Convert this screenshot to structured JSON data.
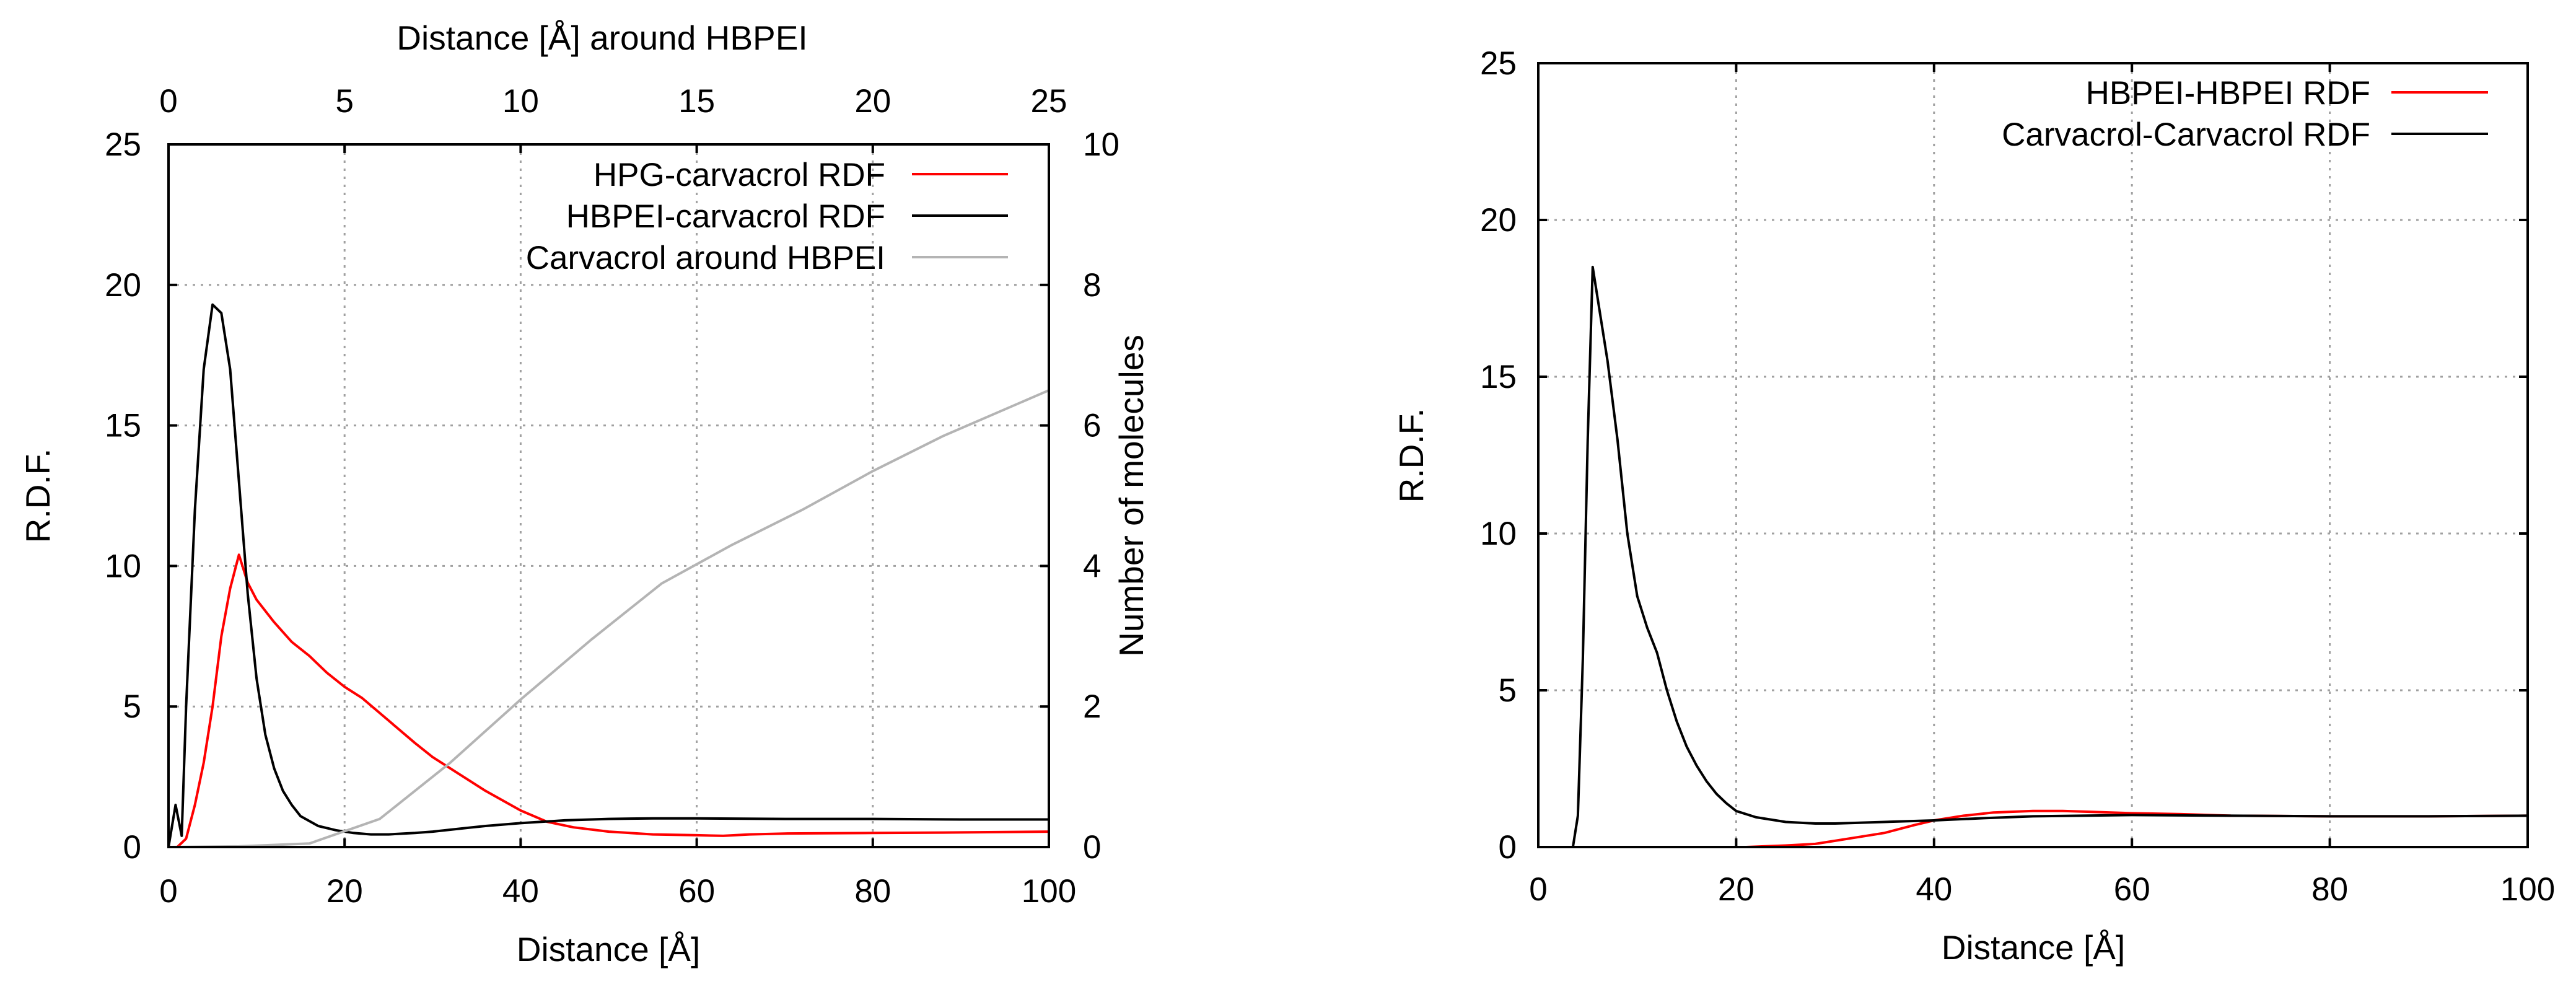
{
  "chart_data": [
    {
      "type": "line",
      "xlabel": "Distance [Å]",
      "ylabel": "R.D.F.",
      "x2label": "Distance [Å] around HBPEI",
      "y2label": "Number of molecules",
      "xlim": [
        0,
        100
      ],
      "ylim": [
        0,
        25
      ],
      "x2lim": [
        0,
        25
      ],
      "y2lim": [
        0,
        10
      ],
      "xticks": [
        "0",
        "20",
        "40",
        "60",
        "80",
        "100"
      ],
      "yticks": [
        "0",
        "5",
        "10",
        "15",
        "20",
        "25"
      ],
      "x2ticks": [
        "0",
        "5",
        "10",
        "15",
        "20",
        "25"
      ],
      "y2ticks": [
        "0",
        "2",
        "4",
        "6",
        "8",
        "10"
      ],
      "grid": true,
      "legend_position": "top-right",
      "series": [
        {
          "name": "HPG-carvacrol RDF",
          "color": "#ff0000",
          "axis": "left",
          "x": [
            0,
            1,
            2,
            3,
            4,
            5,
            6,
            7,
            8,
            9,
            10,
            12,
            14,
            16,
            18,
            20,
            22,
            25,
            28,
            30,
            33,
            36,
            40,
            43,
            46,
            50,
            55,
            60,
            63,
            66,
            70,
            80,
            90,
            100
          ],
          "y": [
            0,
            0,
            0.3,
            1.5,
            3.0,
            5.0,
            7.5,
            9.2,
            10.4,
            9.4,
            8.8,
            8.0,
            7.3,
            6.8,
            6.2,
            5.7,
            5.3,
            4.5,
            3.7,
            3.2,
            2.6,
            2.0,
            1.3,
            0.9,
            0.7,
            0.55,
            0.45,
            0.42,
            0.4,
            0.45,
            0.48,
            0.5,
            0.52,
            0.55
          ]
        },
        {
          "name": "HBPEI-carvacrol RDF",
          "color": "#000000",
          "axis": "left",
          "x": [
            0,
            0.8,
            1.5,
            2,
            3,
            4,
            5,
            6,
            7,
            8,
            9,
            10,
            11,
            12,
            13,
            14,
            15,
            17,
            19,
            21,
            23,
            25,
            28,
            30,
            33,
            36,
            40,
            45,
            50,
            55,
            60,
            70,
            80,
            90,
            100
          ],
          "y": [
            0,
            1.5,
            0.4,
            5.0,
            12.0,
            17.0,
            19.3,
            19.0,
            17.0,
            13.0,
            9.0,
            6.0,
            4.0,
            2.8,
            2.0,
            1.5,
            1.1,
            0.75,
            0.6,
            0.5,
            0.45,
            0.45,
            0.5,
            0.55,
            0.65,
            0.75,
            0.85,
            0.95,
            1.0,
            1.02,
            1.02,
            1.0,
            1.0,
            0.98,
            0.98
          ]
        },
        {
          "name": "Carvacrol around HBPEI",
          "color": "#b4b4b4",
          "axis": "right",
          "x": [
            0,
            2,
            4,
            6,
            8,
            10,
            12,
            14,
            16,
            18,
            20,
            22,
            25
          ],
          "y": [
            0,
            0.01,
            0.05,
            0.4,
            1.2,
            2.1,
            2.95,
            3.75,
            4.3,
            4.8,
            5.35,
            5.85,
            6.5
          ]
        }
      ]
    },
    {
      "type": "line",
      "xlabel": "Distance [Å]",
      "ylabel": "R.D.F.",
      "xlim": [
        0,
        100
      ],
      "ylim": [
        0,
        25
      ],
      "xticks": [
        "0",
        "20",
        "40",
        "60",
        "80",
        "100"
      ],
      "yticks": [
        "0",
        "5",
        "10",
        "15",
        "20",
        "25"
      ],
      "grid": true,
      "legend_position": "top-right",
      "series": [
        {
          "name": "HBPEI-HBPEI RDF",
          "color": "#ff0000",
          "x": [
            21,
            25,
            28,
            30,
            32,
            35,
            38,
            40,
            43,
            46,
            50,
            53,
            56,
            60,
            65,
            70,
            80,
            90,
            100
          ],
          "y": [
            0,
            0.05,
            0.1,
            0.2,
            0.3,
            0.45,
            0.7,
            0.85,
            1.0,
            1.1,
            1.15,
            1.15,
            1.12,
            1.08,
            1.05,
            1.0,
            0.98,
            0.98,
            1.0
          ]
        },
        {
          "name": "Carvacrol-Carvacrol RDF",
          "color": "#000000",
          "x": [
            0,
            3.5,
            4,
            4.5,
            5,
            5.5,
            6,
            6.5,
            7,
            8,
            9,
            10,
            11,
            12,
            13,
            14,
            15,
            16,
            17,
            18,
            19,
            20,
            22,
            25,
            28,
            30,
            35,
            40,
            45,
            50,
            55,
            60,
            70,
            80,
            90,
            100
          ],
          "y": [
            0,
            0,
            1.0,
            6.0,
            13.0,
            18.5,
            17.5,
            16.5,
            15.5,
            13.0,
            10.0,
            8.0,
            7.0,
            6.2,
            5.0,
            4.0,
            3.2,
            2.6,
            2.1,
            1.7,
            1.4,
            1.15,
            0.95,
            0.8,
            0.75,
            0.75,
            0.8,
            0.85,
            0.92,
            0.98,
            1.0,
            1.02,
            1.0,
            0.98,
            0.98,
            1.0
          ]
        }
      ]
    }
  ]
}
